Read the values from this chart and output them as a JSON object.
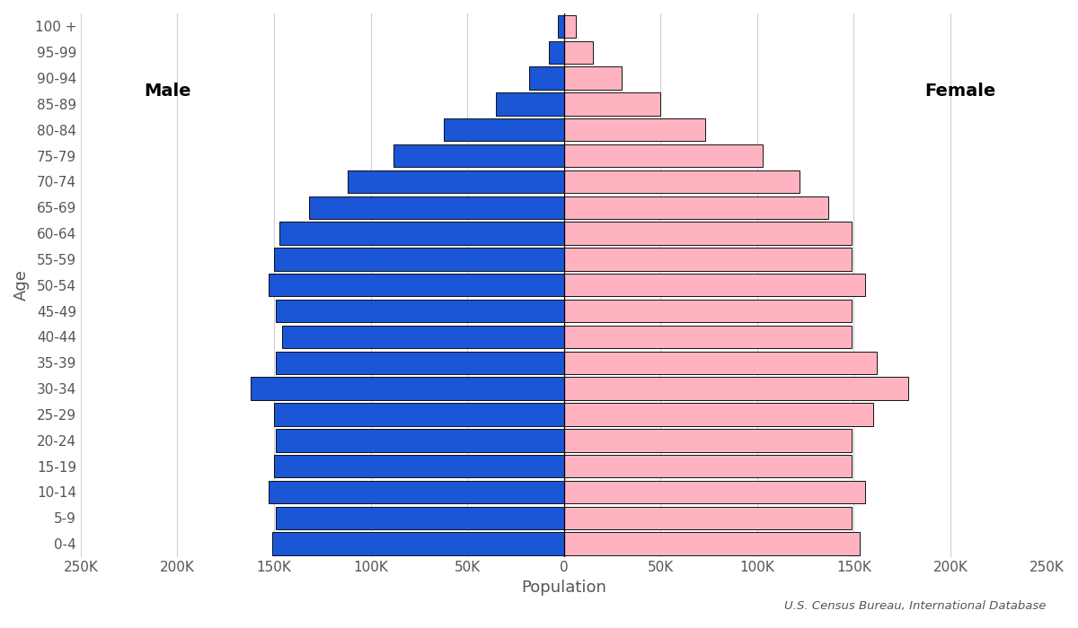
{
  "age_groups": [
    "0-4",
    "5-9",
    "10-14",
    "15-19",
    "20-24",
    "25-29",
    "30-34",
    "35-39",
    "40-44",
    "45-49",
    "50-54",
    "55-59",
    "60-64",
    "65-69",
    "70-74",
    "75-79",
    "80-84",
    "85-89",
    "90-94",
    "95-99",
    "100 +"
  ],
  "male": [
    151000,
    149000,
    153000,
    150000,
    149000,
    150000,
    162000,
    149000,
    146000,
    149000,
    153000,
    150000,
    147000,
    132000,
    112000,
    88000,
    62000,
    35000,
    18000,
    8000,
    3000
  ],
  "female": [
    153000,
    149000,
    156000,
    149000,
    149000,
    160000,
    178000,
    162000,
    149000,
    149000,
    156000,
    149000,
    149000,
    137000,
    122000,
    103000,
    73000,
    50000,
    30000,
    15000,
    6000
  ],
  "male_color": "#1a56d6",
  "female_color": "#ffb3c1",
  "male_label": "Male",
  "female_label": "Female",
  "xlabel": "Population",
  "ylabel": "Age",
  "source": "U.S. Census Bureau, International Database",
  "xlim": 250000,
  "tick_labels": [
    "250K",
    "200K",
    "150K",
    "100K",
    "50K",
    "0",
    "50K",
    "100K",
    "150K",
    "200K",
    "250K"
  ],
  "bar_edge_color": "#111111",
  "bar_linewidth": 0.7,
  "grid_color": "#d0d0d0",
  "background_color": "#ffffff",
  "font_color": "#555555",
  "label_fontsize": 13,
  "tick_fontsize": 11,
  "legend_fontsize": 14
}
